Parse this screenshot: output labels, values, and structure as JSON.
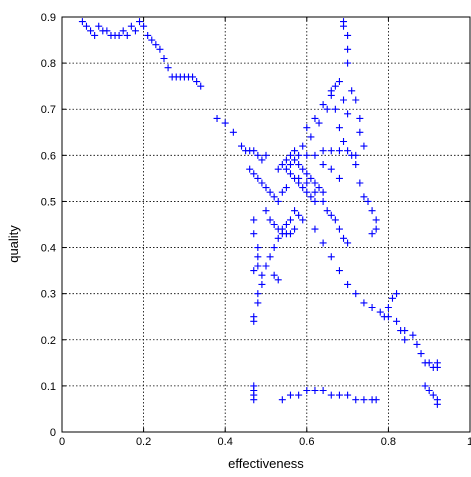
{
  "chart_data": {
    "type": "scatter",
    "title": "",
    "xlabel": "effectiveness",
    "ylabel": "quality",
    "xlim": [
      0,
      1
    ],
    "ylim": [
      0,
      0.9
    ],
    "xticks": [
      0,
      0.2,
      0.4,
      0.6,
      0.8,
      1
    ],
    "yticks": [
      0,
      0.1,
      0.2,
      0.3,
      0.4,
      0.5,
      0.6,
      0.7,
      0.8,
      0.9
    ],
    "x_tick_labels": [
      "0",
      "0.2",
      "0.4",
      "0.6",
      "0.8",
      "1"
    ],
    "y_tick_labels": [
      "0",
      "0.1",
      "0.2",
      "0.3",
      "0.4",
      "0.5",
      "0.6",
      "0.7",
      "0.8",
      "0.9"
    ],
    "grid": true,
    "grid_style": "dotted",
    "marker": "+",
    "marker_color": "#0000ff",
    "series": [
      {
        "points": [
          [
            0.05,
            0.89
          ],
          [
            0.06,
            0.88
          ],
          [
            0.07,
            0.87
          ],
          [
            0.08,
            0.86
          ],
          [
            0.09,
            0.88
          ],
          [
            0.1,
            0.87
          ],
          [
            0.11,
            0.87
          ],
          [
            0.12,
            0.86
          ],
          [
            0.13,
            0.86
          ],
          [
            0.14,
            0.86
          ],
          [
            0.15,
            0.87
          ],
          [
            0.16,
            0.86
          ],
          [
            0.17,
            0.88
          ],
          [
            0.18,
            0.87
          ],
          [
            0.19,
            0.89
          ],
          [
            0.2,
            0.88
          ],
          [
            0.21,
            0.86
          ],
          [
            0.22,
            0.85
          ],
          [
            0.23,
            0.84
          ],
          [
            0.24,
            0.83
          ],
          [
            0.25,
            0.81
          ],
          [
            0.26,
            0.79
          ],
          [
            0.27,
            0.77
          ],
          [
            0.28,
            0.77
          ],
          [
            0.29,
            0.77
          ],
          [
            0.3,
            0.77
          ],
          [
            0.31,
            0.77
          ],
          [
            0.32,
            0.77
          ],
          [
            0.33,
            0.76
          ],
          [
            0.34,
            0.75
          ],
          [
            0.38,
            0.68
          ],
          [
            0.4,
            0.67
          ],
          [
            0.42,
            0.65
          ],
          [
            0.44,
            0.62
          ],
          [
            0.45,
            0.61
          ],
          [
            0.46,
            0.61
          ],
          [
            0.47,
            0.61
          ],
          [
            0.48,
            0.6
          ],
          [
            0.49,
            0.59
          ],
          [
            0.5,
            0.6
          ],
          [
            0.46,
            0.57
          ],
          [
            0.47,
            0.56
          ],
          [
            0.48,
            0.55
          ],
          [
            0.49,
            0.54
          ],
          [
            0.5,
            0.53
          ],
          [
            0.51,
            0.52
          ],
          [
            0.52,
            0.51
          ],
          [
            0.53,
            0.5
          ],
          [
            0.54,
            0.52
          ],
          [
            0.55,
            0.53
          ],
          [
            0.55,
            0.57
          ],
          [
            0.56,
            0.58
          ],
          [
            0.57,
            0.59
          ],
          [
            0.58,
            0.58
          ],
          [
            0.59,
            0.57
          ],
          [
            0.6,
            0.56
          ],
          [
            0.61,
            0.55
          ],
          [
            0.62,
            0.54
          ],
          [
            0.63,
            0.53
          ],
          [
            0.64,
            0.52
          ],
          [
            0.56,
            0.6
          ],
          [
            0.58,
            0.6
          ],
          [
            0.6,
            0.6
          ],
          [
            0.62,
            0.6
          ],
          [
            0.64,
            0.61
          ],
          [
            0.66,
            0.61
          ],
          [
            0.68,
            0.61
          ],
          [
            0.7,
            0.61
          ],
          [
            0.71,
            0.6
          ],
          [
            0.72,
            0.6
          ],
          [
            0.57,
            0.61
          ],
          [
            0.59,
            0.62
          ],
          [
            0.61,
            0.64
          ],
          [
            0.63,
            0.67
          ],
          [
            0.65,
            0.7
          ],
          [
            0.66,
            0.74
          ],
          [
            0.67,
            0.75
          ],
          [
            0.68,
            0.76
          ],
          [
            0.69,
            0.72
          ],
          [
            0.7,
            0.69
          ],
          [
            0.58,
            0.55
          ],
          [
            0.6,
            0.54
          ],
          [
            0.62,
            0.52
          ],
          [
            0.64,
            0.5
          ],
          [
            0.65,
            0.48
          ],
          [
            0.66,
            0.47
          ],
          [
            0.67,
            0.46
          ],
          [
            0.68,
            0.44
          ],
          [
            0.69,
            0.42
          ],
          [
            0.7,
            0.41
          ],
          [
            0.69,
            0.88
          ],
          [
            0.69,
            0.89
          ],
          [
            0.7,
            0.86
          ],
          [
            0.7,
            0.83
          ],
          [
            0.7,
            0.8
          ],
          [
            0.71,
            0.74
          ],
          [
            0.72,
            0.72
          ],
          [
            0.73,
            0.68
          ],
          [
            0.73,
            0.65
          ],
          [
            0.74,
            0.62
          ],
          [
            0.72,
            0.58
          ],
          [
            0.73,
            0.54
          ],
          [
            0.74,
            0.51
          ],
          [
            0.75,
            0.5
          ],
          [
            0.76,
            0.48
          ],
          [
            0.77,
            0.46
          ],
          [
            0.77,
            0.44
          ],
          [
            0.76,
            0.43
          ],
          [
            0.47,
            0.46
          ],
          [
            0.47,
            0.43
          ],
          [
            0.48,
            0.4
          ],
          [
            0.48,
            0.38
          ],
          [
            0.48,
            0.36
          ],
          [
            0.47,
            0.35
          ],
          [
            0.49,
            0.34
          ],
          [
            0.49,
            0.32
          ],
          [
            0.48,
            0.3
          ],
          [
            0.48,
            0.28
          ],
          [
            0.47,
            0.25
          ],
          [
            0.47,
            0.24
          ],
          [
            0.47,
            0.1
          ],
          [
            0.47,
            0.09
          ],
          [
            0.47,
            0.08
          ],
          [
            0.47,
            0.07
          ],
          [
            0.5,
            0.48
          ],
          [
            0.51,
            0.46
          ],
          [
            0.52,
            0.45
          ],
          [
            0.53,
            0.44
          ],
          [
            0.54,
            0.44
          ],
          [
            0.55,
            0.45
          ],
          [
            0.56,
            0.46
          ],
          [
            0.57,
            0.48
          ],
          [
            0.58,
            0.47
          ],
          [
            0.59,
            0.46
          ],
          [
            0.53,
            0.57
          ],
          [
            0.54,
            0.58
          ],
          [
            0.55,
            0.59
          ],
          [
            0.56,
            0.56
          ],
          [
            0.57,
            0.55
          ],
          [
            0.58,
            0.54
          ],
          [
            0.59,
            0.53
          ],
          [
            0.6,
            0.52
          ],
          [
            0.61,
            0.51
          ],
          [
            0.62,
            0.5
          ],
          [
            0.62,
            0.44
          ],
          [
            0.64,
            0.41
          ],
          [
            0.66,
            0.38
          ],
          [
            0.68,
            0.35
          ],
          [
            0.7,
            0.32
          ],
          [
            0.72,
            0.3
          ],
          [
            0.74,
            0.28
          ],
          [
            0.76,
            0.27
          ],
          [
            0.78,
            0.26
          ],
          [
            0.8,
            0.25
          ],
          [
            0.82,
            0.24
          ],
          [
            0.84,
            0.22
          ],
          [
            0.86,
            0.21
          ],
          [
            0.87,
            0.19
          ],
          [
            0.88,
            0.17
          ],
          [
            0.89,
            0.15
          ],
          [
            0.9,
            0.15
          ],
          [
            0.91,
            0.14
          ],
          [
            0.92,
            0.14
          ],
          [
            0.92,
            0.15
          ],
          [
            0.89,
            0.1
          ],
          [
            0.9,
            0.09
          ],
          [
            0.91,
            0.08
          ],
          [
            0.92,
            0.07
          ],
          [
            0.92,
            0.06
          ],
          [
            0.54,
            0.07
          ],
          [
            0.56,
            0.08
          ],
          [
            0.58,
            0.08
          ],
          [
            0.6,
            0.09
          ],
          [
            0.62,
            0.09
          ],
          [
            0.64,
            0.09
          ],
          [
            0.66,
            0.08
          ],
          [
            0.68,
            0.08
          ],
          [
            0.7,
            0.08
          ],
          [
            0.72,
            0.07
          ],
          [
            0.74,
            0.07
          ],
          [
            0.76,
            0.07
          ],
          [
            0.77,
            0.07
          ],
          [
            0.79,
            0.25
          ],
          [
            0.8,
            0.27
          ],
          [
            0.81,
            0.29
          ],
          [
            0.82,
            0.3
          ],
          [
            0.83,
            0.22
          ],
          [
            0.84,
            0.2
          ],
          [
            0.5,
            0.36
          ],
          [
            0.51,
            0.38
          ],
          [
            0.52,
            0.4
          ],
          [
            0.53,
            0.42
          ],
          [
            0.54,
            0.43
          ],
          [
            0.55,
            0.43
          ],
          [
            0.56,
            0.43
          ],
          [
            0.57,
            0.44
          ],
          [
            0.52,
            0.34
          ],
          [
            0.53,
            0.33
          ],
          [
            0.6,
            0.66
          ],
          [
            0.62,
            0.68
          ],
          [
            0.64,
            0.71
          ],
          [
            0.66,
            0.73
          ],
          [
            0.67,
            0.7
          ],
          [
            0.68,
            0.66
          ],
          [
            0.69,
            0.63
          ],
          [
            0.64,
            0.58
          ],
          [
            0.66,
            0.57
          ],
          [
            0.68,
            0.55
          ]
        ]
      }
    ]
  }
}
